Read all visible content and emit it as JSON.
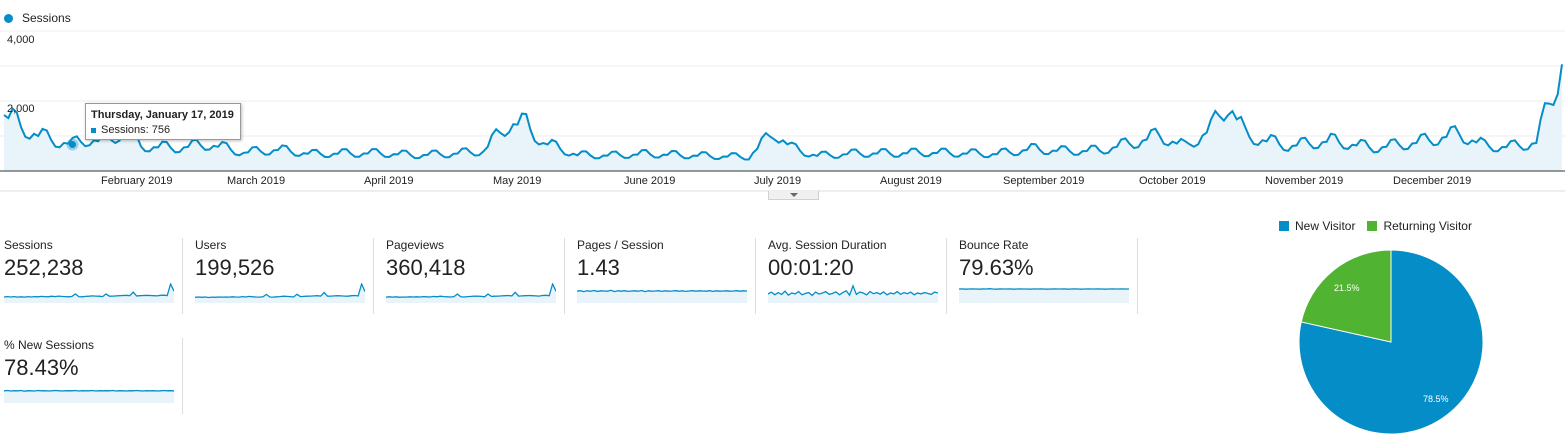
{
  "main_chart": {
    "legend_label": "Sessions",
    "series_color": "#058dc7",
    "y_axis_labels": [
      "4,000",
      "2,000"
    ],
    "ylim": [
      0,
      4000
    ],
    "x_axis_labels": [
      "February 2019",
      "March 2019",
      "April 2019",
      "May 2019",
      "June 2019",
      "July 2019",
      "August 2019",
      "September 2019",
      "October 2019",
      "November 2019",
      "December 2019"
    ],
    "tooltip": {
      "date": "Thursday, January 17, 2019",
      "series_label": "Sessions: 756"
    }
  },
  "chart_data": {
    "type": "area",
    "series": [
      {
        "name": "Sessions",
        "keypoints": [
          [
            0,
            1600
          ],
          [
            4,
            1250
          ],
          [
            8,
            1000
          ],
          [
            12,
            850
          ],
          [
            16,
            756
          ],
          [
            20,
            900
          ],
          [
            24,
            800
          ],
          [
            28,
            1150
          ],
          [
            32,
            700
          ],
          [
            40,
            650
          ],
          [
            48,
            750
          ],
          [
            56,
            520
          ],
          [
            64,
            600
          ],
          [
            72,
            480
          ],
          [
            80,
            500
          ],
          [
            88,
            500
          ],
          [
            96,
            450
          ],
          [
            104,
            480
          ],
          [
            112,
            560
          ],
          [
            118,
            1350
          ],
          [
            122,
            1300
          ],
          [
            126,
            800
          ],
          [
            134,
            450
          ],
          [
            142,
            440
          ],
          [
            150,
            480
          ],
          [
            158,
            450
          ],
          [
            166,
            420
          ],
          [
            174,
            400
          ],
          [
            180,
            1100
          ],
          [
            184,
            650
          ],
          [
            190,
            430
          ],
          [
            200,
            500
          ],
          [
            208,
            500
          ],
          [
            216,
            520
          ],
          [
            224,
            500
          ],
          [
            232,
            480
          ],
          [
            240,
            620
          ],
          [
            248,
            560
          ],
          [
            256,
            580
          ],
          [
            264,
            800
          ],
          [
            270,
            1000
          ],
          [
            276,
            680
          ],
          [
            282,
            1180
          ],
          [
            286,
            1950
          ],
          [
            290,
            1000
          ],
          [
            300,
            700
          ],
          [
            310,
            850
          ],
          [
            320,
            650
          ],
          [
            330,
            800
          ],
          [
            340,
            1050
          ],
          [
            346,
            700
          ],
          [
            352,
            680
          ],
          [
            358,
            800
          ],
          [
            364,
            3050
          ],
          [
            366,
            2200
          ],
          [
            368,
            1000
          ]
        ]
      }
    ],
    "sparklines": {
      "sessions": [
        0.28,
        0.3,
        0.28,
        0.3,
        0.27,
        0.29,
        0.27,
        0.3,
        0.28,
        0.3,
        0.29,
        0.31,
        0.3,
        0.29,
        0.32,
        0.3,
        0.33,
        0.31,
        0.3,
        0.29,
        0.31,
        0.45,
        0.3,
        0.29,
        0.31,
        0.32,
        0.34,
        0.33,
        0.32,
        0.3,
        0.45,
        0.32,
        0.33,
        0.34,
        0.35,
        0.36,
        0.37,
        0.35,
        0.55,
        0.34,
        0.35,
        0.36,
        0.37,
        0.36,
        0.35,
        0.34,
        0.37,
        0.38,
        0.36,
        1.0,
        0.6
      ],
      "users": [
        0.26,
        0.28,
        0.26,
        0.28,
        0.25,
        0.27,
        0.26,
        0.28,
        0.27,
        0.28,
        0.27,
        0.29,
        0.28,
        0.27,
        0.3,
        0.28,
        0.31,
        0.29,
        0.28,
        0.27,
        0.29,
        0.42,
        0.28,
        0.27,
        0.29,
        0.3,
        0.32,
        0.31,
        0.3,
        0.28,
        0.43,
        0.3,
        0.31,
        0.32,
        0.33,
        0.34,
        0.35,
        0.33,
        0.53,
        0.32,
        0.33,
        0.34,
        0.35,
        0.34,
        0.33,
        0.32,
        0.35,
        0.36,
        0.34,
        1.0,
        0.58
      ],
      "pageviews": [
        0.27,
        0.29,
        0.27,
        0.29,
        0.26,
        0.28,
        0.27,
        0.29,
        0.28,
        0.29,
        0.28,
        0.3,
        0.29,
        0.28,
        0.31,
        0.29,
        0.32,
        0.3,
        0.29,
        0.28,
        0.3,
        0.44,
        0.29,
        0.28,
        0.3,
        0.31,
        0.33,
        0.32,
        0.31,
        0.29,
        0.44,
        0.31,
        0.32,
        0.33,
        0.34,
        0.35,
        0.36,
        0.34,
        0.54,
        0.33,
        0.34,
        0.35,
        0.36,
        0.35,
        0.34,
        0.33,
        0.36,
        0.37,
        0.35,
        1.0,
        0.6
      ],
      "pages_per_session": [
        0.6,
        0.63,
        0.58,
        0.62,
        0.6,
        0.64,
        0.59,
        0.62,
        0.61,
        0.6,
        0.65,
        0.58,
        0.62,
        0.6,
        0.63,
        0.59,
        0.61,
        0.62,
        0.6,
        0.64,
        0.58,
        0.62,
        0.6,
        0.61,
        0.63,
        0.59,
        0.62,
        0.6,
        0.61,
        0.63,
        0.6,
        0.62,
        0.59,
        0.61,
        0.63,
        0.6,
        0.62,
        0.61,
        0.6,
        0.63,
        0.59,
        0.62,
        0.6,
        0.61,
        0.62,
        0.6,
        0.61,
        0.63,
        0.6,
        0.62,
        0.61
      ],
      "avg_session_duration": [
        0.45,
        0.55,
        0.4,
        0.52,
        0.42,
        0.6,
        0.38,
        0.5,
        0.45,
        0.58,
        0.4,
        0.48,
        0.52,
        0.36,
        0.55,
        0.44,
        0.5,
        0.58,
        0.42,
        0.48,
        0.56,
        0.4,
        0.52,
        0.62,
        0.38,
        0.9,
        0.42,
        0.55,
        0.5,
        0.4,
        0.58,
        0.46,
        0.52,
        0.44,
        0.56,
        0.4,
        0.5,
        0.45,
        0.58,
        0.42,
        0.52,
        0.46,
        0.55,
        0.4,
        0.5,
        0.45,
        0.52,
        0.48,
        0.42,
        0.55,
        0.5
      ],
      "bounce_rate": [
        0.72,
        0.73,
        0.71,
        0.72,
        0.73,
        0.72,
        0.71,
        0.73,
        0.72,
        0.74,
        0.72,
        0.71,
        0.73,
        0.72,
        0.72,
        0.73,
        0.71,
        0.72,
        0.73,
        0.72,
        0.72,
        0.71,
        0.73,
        0.72,
        0.73,
        0.72,
        0.71,
        0.72,
        0.73,
        0.72,
        0.72,
        0.73,
        0.71,
        0.72,
        0.73,
        0.72,
        0.71,
        0.72,
        0.73,
        0.72,
        0.72,
        0.73,
        0.72,
        0.71,
        0.72,
        0.73,
        0.72,
        0.72,
        0.73,
        0.72,
        0.72
      ],
      "new_sessions": [
        0.62,
        0.64,
        0.61,
        0.63,
        0.62,
        0.64,
        0.6,
        0.63,
        0.62,
        0.61,
        0.64,
        0.62,
        0.63,
        0.61,
        0.62,
        0.64,
        0.63,
        0.61,
        0.62,
        0.63,
        0.62,
        0.64,
        0.61,
        0.63,
        0.62,
        0.62,
        0.64,
        0.61,
        0.63,
        0.62,
        0.63,
        0.62,
        0.64,
        0.61,
        0.63,
        0.62,
        0.61,
        0.63,
        0.62,
        0.64,
        0.62,
        0.61,
        0.63,
        0.62,
        0.63,
        0.61,
        0.62,
        0.64,
        0.62,
        0.63,
        0.62
      ]
    },
    "pie": {
      "slices": [
        {
          "name": "New Visitor",
          "value": 78.5,
          "color": "#058dc7"
        },
        {
          "name": "Returning Visitor",
          "value": 21.5,
          "color": "#50b432"
        }
      ]
    }
  },
  "metrics": [
    {
      "label": "Sessions",
      "value": "252,238",
      "key": "sessions"
    },
    {
      "label": "Users",
      "value": "199,526",
      "key": "users"
    },
    {
      "label": "Pageviews",
      "value": "360,418",
      "key": "pageviews"
    },
    {
      "label": "Pages / Session",
      "value": "1.43",
      "key": "pages_per_session"
    },
    {
      "label": "Avg. Session Duration",
      "value": "00:01:20",
      "key": "avg_session_duration"
    },
    {
      "label": "Bounce Rate",
      "value": "79.63%",
      "key": "bounce_rate"
    },
    {
      "label": "% New Sessions",
      "value": "78.43%",
      "key": "new_sessions"
    }
  ],
  "pie_legend": [
    "New Visitor",
    "Returning Visitor"
  ],
  "pie_labels": [
    "78.5%",
    "21.5%"
  ]
}
